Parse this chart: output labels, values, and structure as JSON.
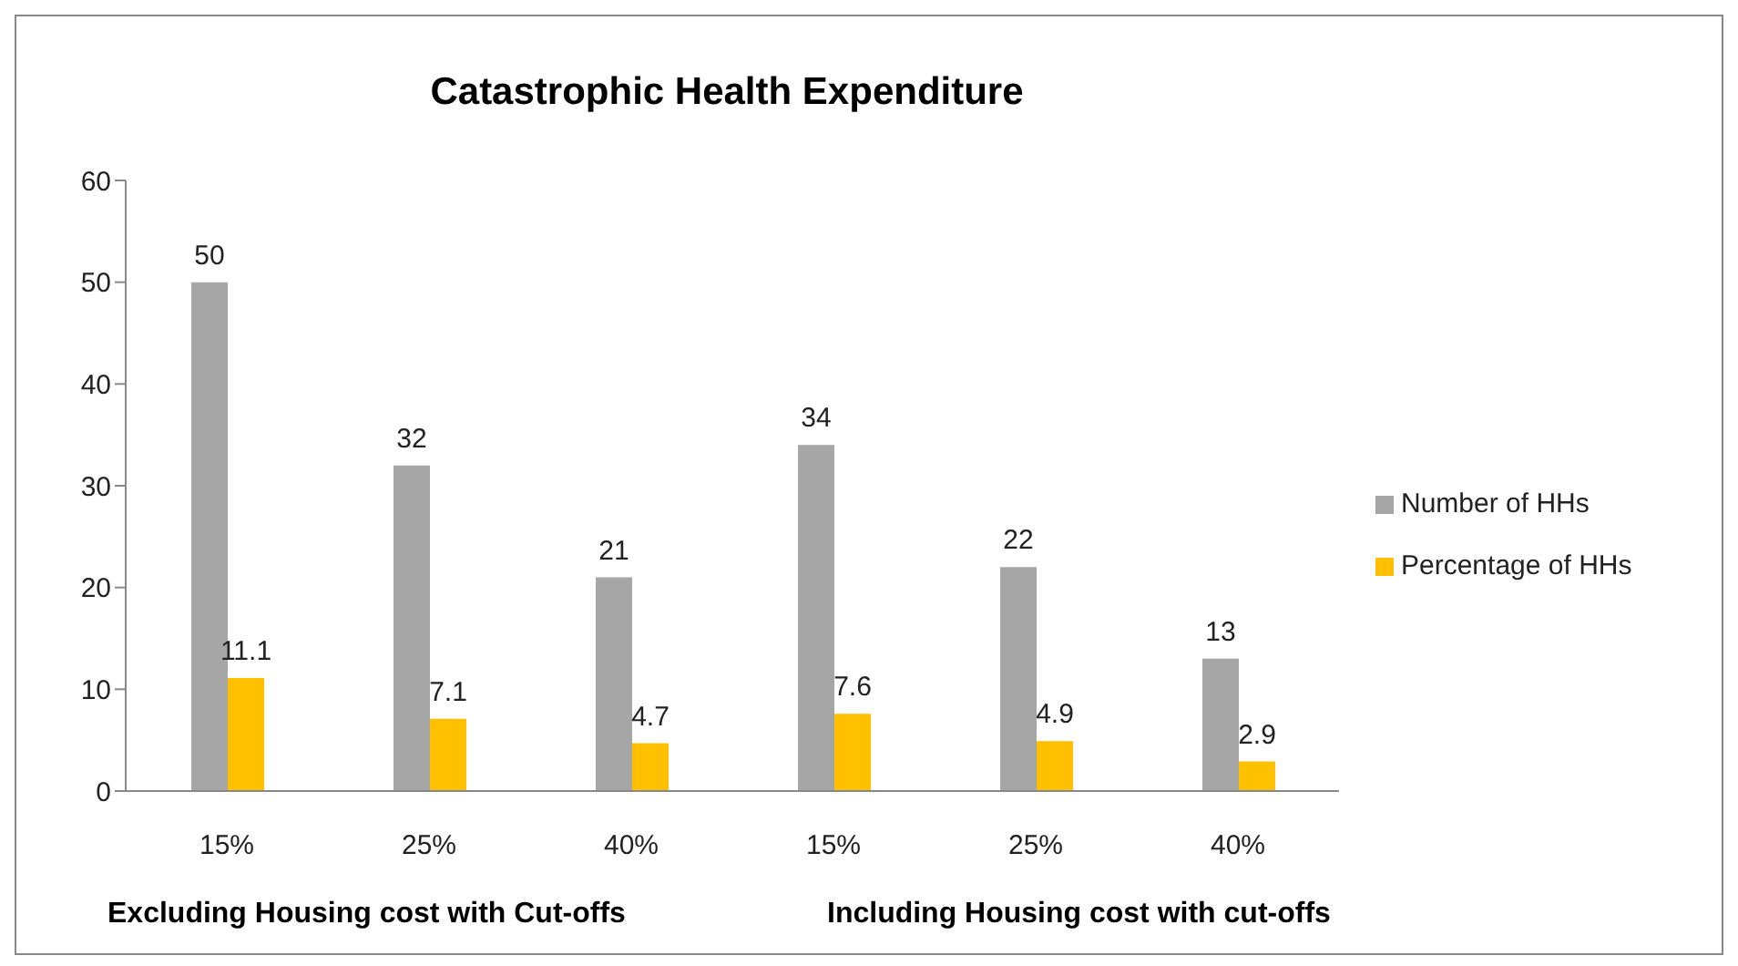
{
  "chart_data": {
    "type": "bar",
    "title": "Catastrophic Health Expenditure",
    "categories": [
      "15%",
      "25%",
      "40%",
      "15%",
      "25%",
      "40%"
    ],
    "series": [
      {
        "name": "Number of HHs",
        "color": "#a6a6a6",
        "values": [
          50,
          32,
          21,
          34,
          22,
          13
        ]
      },
      {
        "name": "Percentage of HHs",
        "color": "#ffc000",
        "values": [
          11.1,
          7.1,
          4.7,
          7.6,
          4.9,
          2.9
        ]
      }
    ],
    "ylim": [
      0,
      60
    ],
    "yticks": [
      0,
      10,
      20,
      30,
      40,
      50,
      60
    ],
    "grid": false,
    "legend": "right",
    "data_labels": true,
    "annotations": [
      "Excluding Housing cost with Cut-offs",
      "Including Housing cost with cut-offs"
    ]
  }
}
